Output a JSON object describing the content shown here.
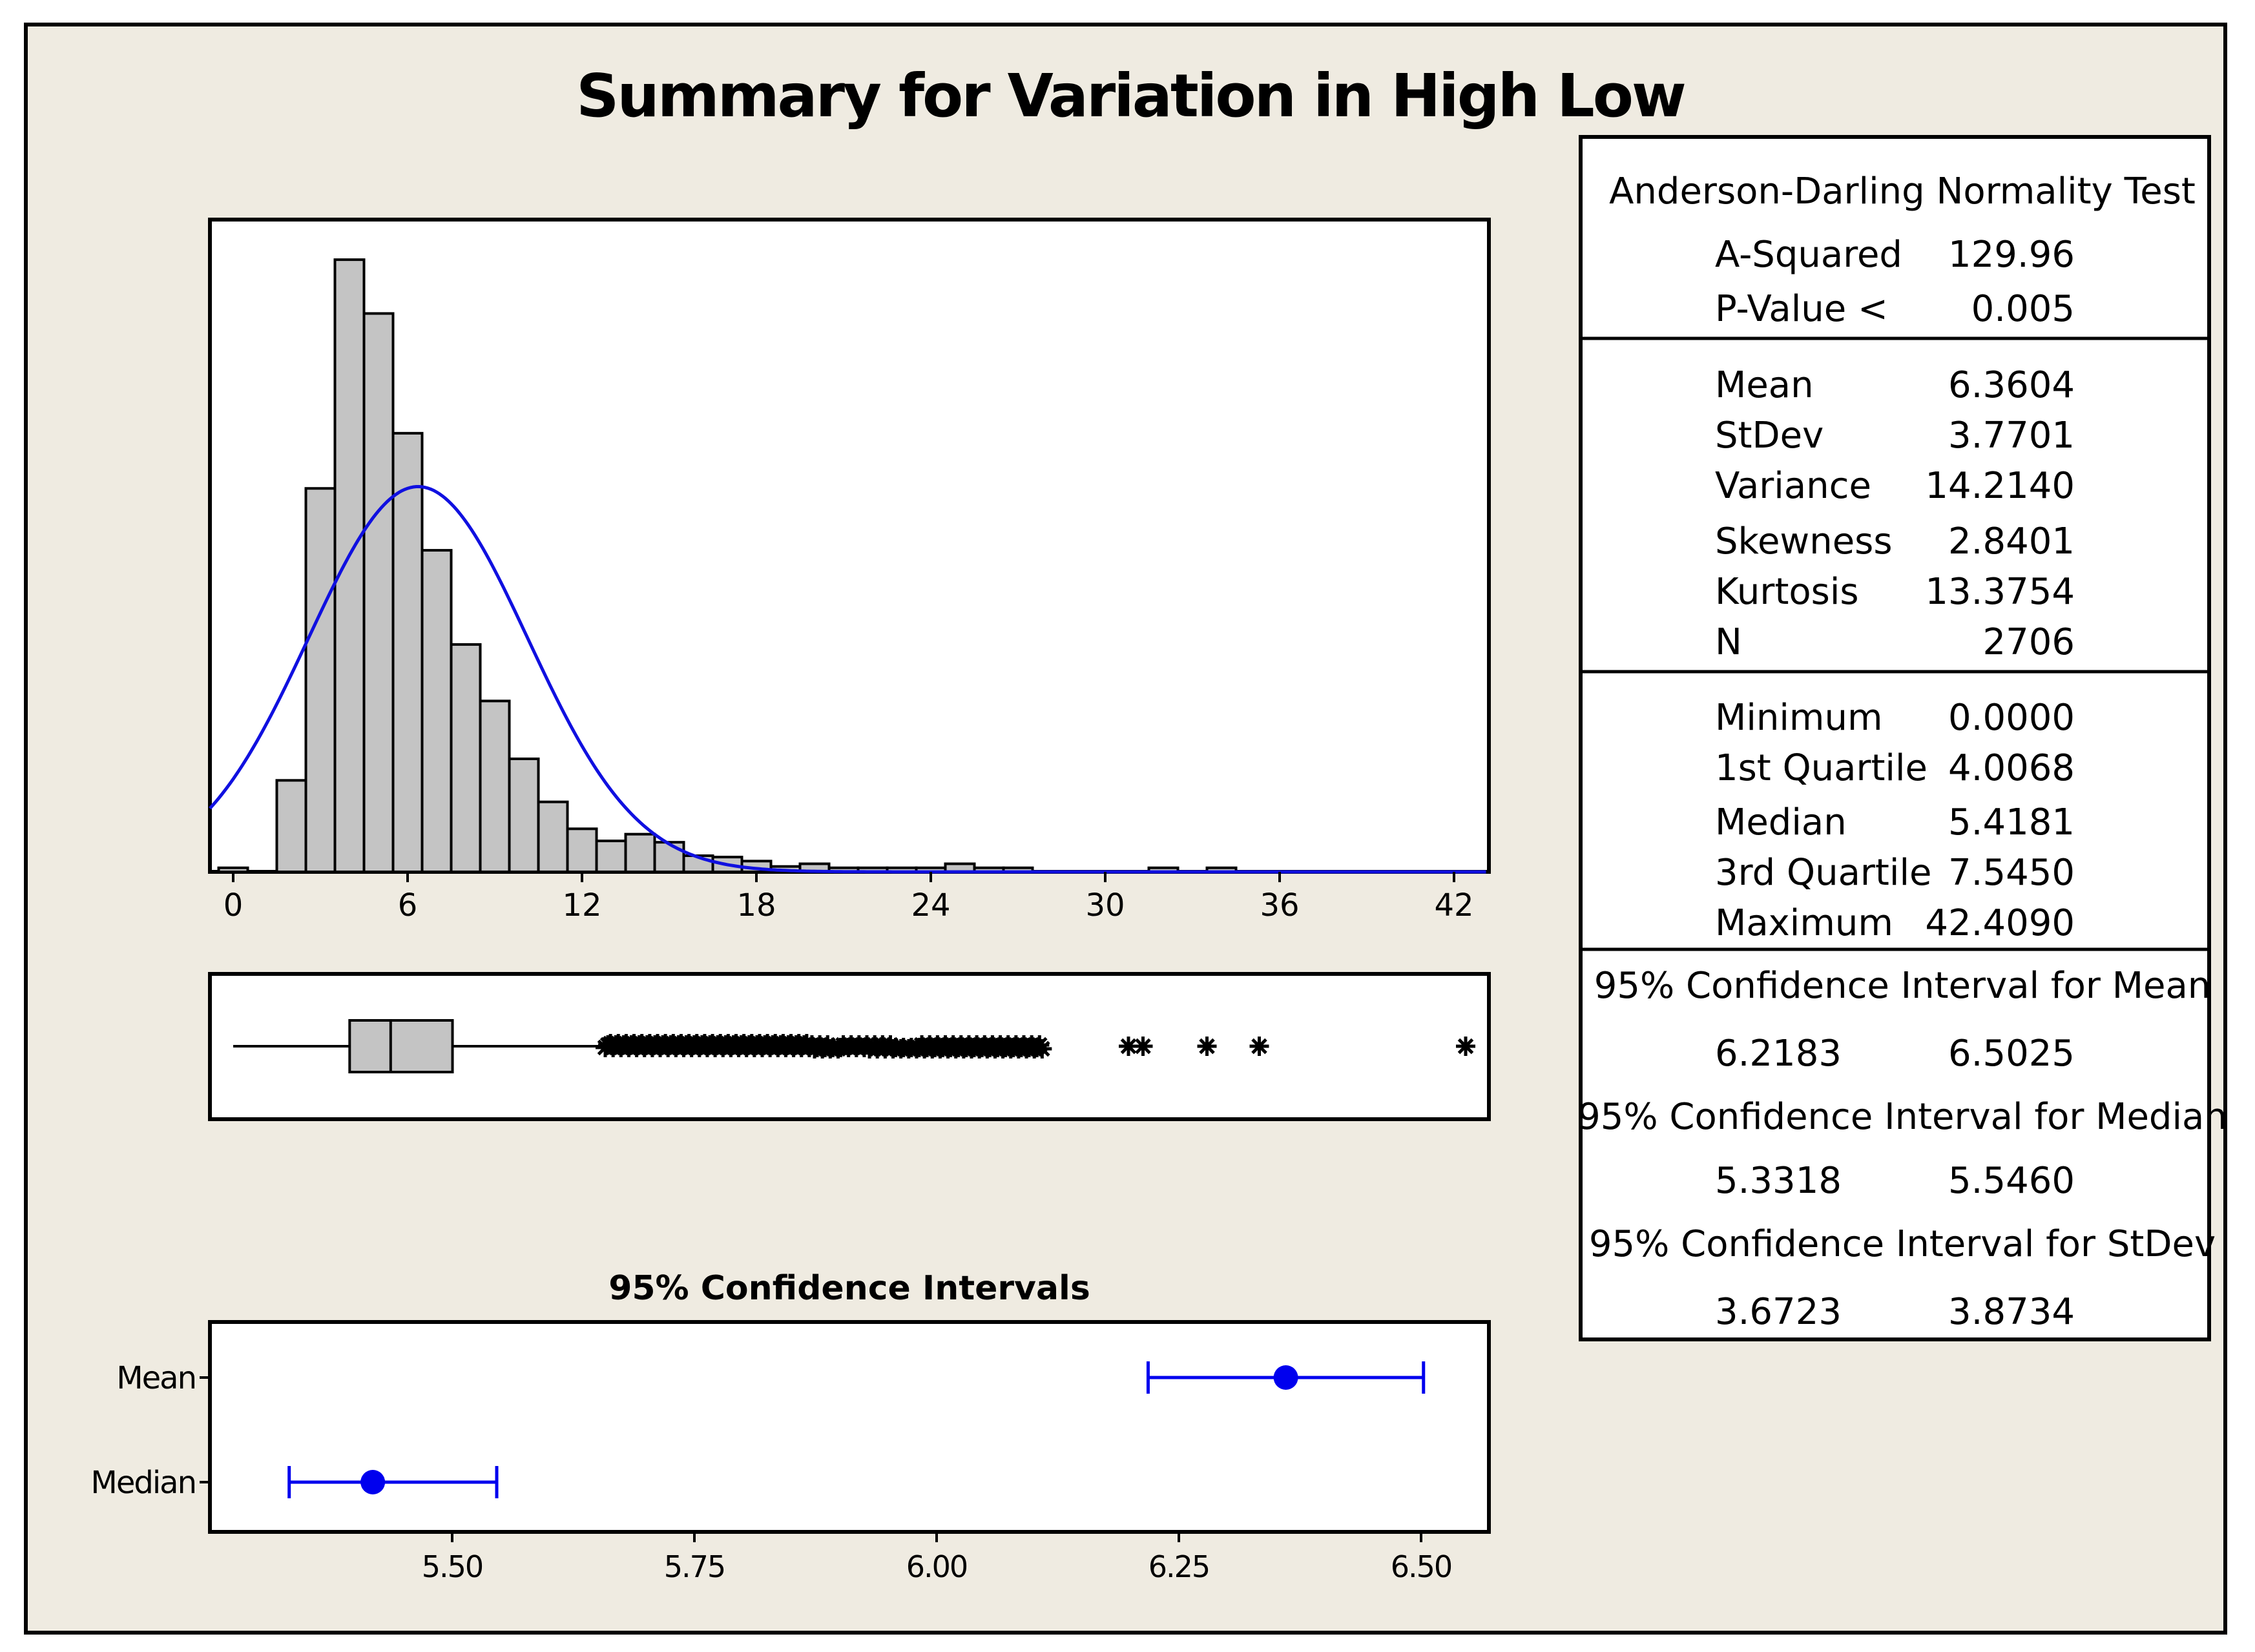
{
  "colors": {
    "background": "#efebe1",
    "panel": "#ffffff",
    "bar_fill": "#c4c4c4",
    "curve": "#1010e0",
    "ci": "#0000ee",
    "ink": "#000000"
  },
  "chart_data": [
    {
      "type": "bar",
      "name": "histogram",
      "title": "Summary for Variation in High Low",
      "x_ticks": [
        "0",
        "6",
        "12",
        "18",
        "24",
        "30",
        "36",
        "42"
      ],
      "x_tick_values": [
        0,
        6,
        12,
        18,
        24,
        30,
        36,
        42
      ],
      "xlim": [
        -0.8,
        43.2
      ],
      "ylim": [
        0,
        480
      ],
      "bin_width": 1,
      "bin_starts": [
        -0.5,
        1.5,
        2.5,
        3.5,
        4.5,
        5.5,
        6.5,
        7.5,
        8.5,
        9.5,
        10.5,
        11.5,
        12.5,
        13.5,
        14.5,
        15.5,
        16.5,
        17.5,
        18.5,
        19.5,
        20.5,
        21.5,
        22.5,
        23.5,
        24.5,
        25.5,
        26.5,
        31.5,
        33.5
      ],
      "counts": [
        3,
        68,
        285,
        455,
        415,
        326,
        239,
        169,
        127,
        84,
        52,
        32,
        23,
        28,
        22,
        12,
        11,
        8,
        4,
        6,
        3,
        3,
        3,
        3,
        6,
        3,
        3,
        3,
        3
      ],
      "fitted_normal": {
        "mean": 6.3604,
        "stdev": 3.7701,
        "n": 2706
      }
    },
    {
      "type": "boxplot",
      "name": "boxplot",
      "min": 0.0,
      "q1": 4.0068,
      "median": 5.4181,
      "q3": 7.545,
      "whisker_high": 12.8,
      "outlier_range": [
        12.8,
        27.9
      ],
      "outliers": [
        30.8,
        31.3,
        33.5,
        35.3,
        42.4
      ]
    },
    {
      "type": "interval",
      "name": "confidence-intervals",
      "title": "95% Confidence Intervals",
      "categories": [
        "Mean",
        "Median"
      ],
      "estimates": [
        6.3604,
        5.4181
      ],
      "lower": [
        6.2183,
        5.3318
      ],
      "upper": [
        6.5025,
        5.546
      ],
      "x_ticks": [
        "5.50",
        "5.75",
        "6.00",
        "6.25",
        "6.50"
      ],
      "x_tick_values": [
        5.5,
        5.75,
        6.0,
        6.25,
        6.5
      ],
      "xlim": [
        5.25,
        6.57
      ]
    }
  ],
  "stats": {
    "ad_heading": "Anderson-Darling Normality Test",
    "ad_rows": [
      {
        "label": "A-Squared",
        "value": "129.96"
      },
      {
        "label": "P-Value <",
        "value": "0.005"
      }
    ],
    "moment_rows": [
      {
        "label": "Mean",
        "value": "6.3604"
      },
      {
        "label": "StDev",
        "value": "3.7701"
      },
      {
        "label": "Variance",
        "value": "14.2140"
      },
      {
        "label": "Skewness",
        "value": "2.8401"
      },
      {
        "label": "Kurtosis",
        "value": "13.3754"
      },
      {
        "label": "N",
        "value": "2706"
      }
    ],
    "quantile_rows": [
      {
        "label": "Minimum",
        "value": "0.0000"
      },
      {
        "label": "1st Quartile",
        "value": "4.0068"
      },
      {
        "label": "Median",
        "value": "5.4181"
      },
      {
        "label": "3rd Quartile",
        "value": "7.5450"
      },
      {
        "label": "Maximum",
        "value": "42.4090"
      }
    ],
    "ci_blocks": [
      {
        "heading": "95% Confidence Interval for Mean",
        "low": "6.2183",
        "high": "6.5025"
      },
      {
        "heading": "95% Confidence Interval for Median",
        "low": "5.3318",
        "high": "5.5460"
      },
      {
        "heading": "95% Confidence Interval for StDev",
        "low": "3.6723",
        "high": "3.8734"
      }
    ]
  }
}
